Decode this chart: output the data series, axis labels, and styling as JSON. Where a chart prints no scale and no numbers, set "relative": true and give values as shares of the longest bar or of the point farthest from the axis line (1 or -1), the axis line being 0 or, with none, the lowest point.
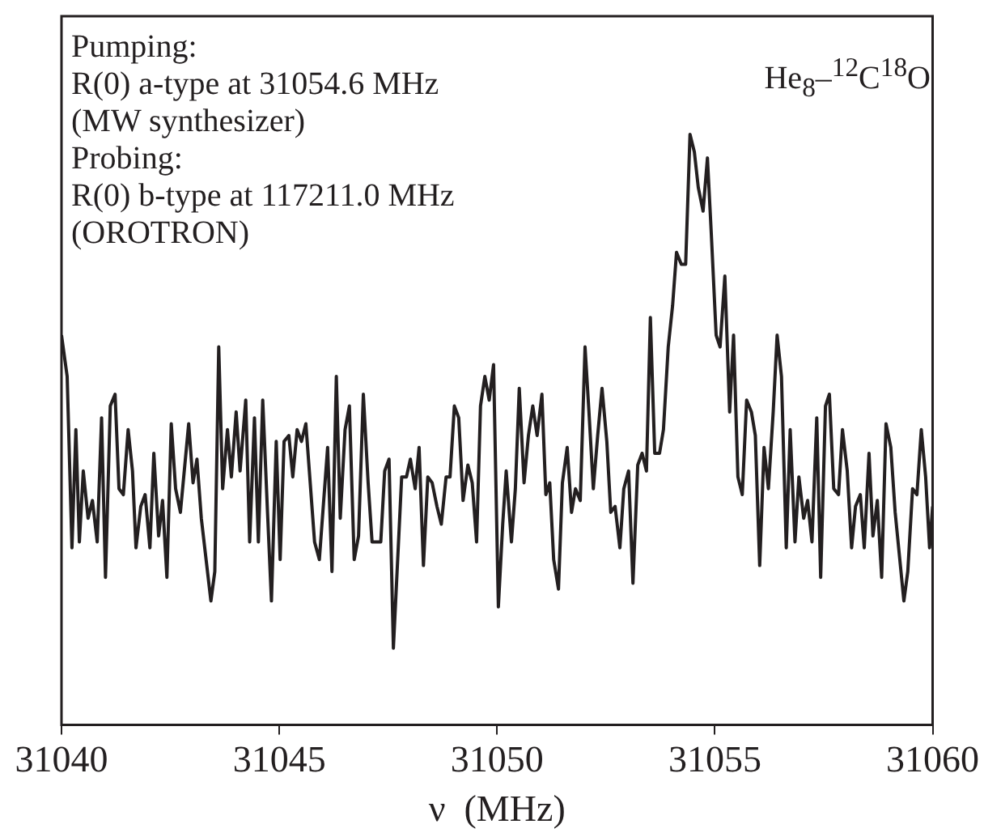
{
  "chart_data": {
    "type": "line",
    "relative": true,
    "xlabel": "ν  (MHz)",
    "xlim": [
      31040,
      31060
    ],
    "xticks": [
      31040,
      31045,
      31050,
      31055,
      31060
    ],
    "tick_labels": "x",
    "marker": "none",
    "line_style": "solid",
    "legend": false,
    "annotations": [
      "Pumping:",
      "R(0) a-type at 31054.6 MHz",
      "(MW synthesizer)",
      "Probing:",
      "R(0) b-type at 117211.0 MHz",
      "(OROTRON)",
      "He$_{8}$–$^{12}$C$^{18}$O"
    ],
    "x": [
      31040.0,
      31040.13,
      31040.24,
      31040.33,
      31040.41,
      31040.5,
      31040.61,
      31040.71,
      31040.82,
      31040.92,
      31041.01,
      31041.12,
      31041.23,
      31041.32,
      31041.42,
      31041.53,
      31041.63,
      31041.71,
      31041.82,
      31041.92,
      31042.03,
      31042.12,
      31042.23,
      31042.32,
      31042.42,
      31042.52,
      31042.62,
      31042.73,
      31042.92,
      31043.02,
      31043.11,
      31043.21,
      31043.43,
      31043.52,
      31043.61,
      31043.7,
      31043.81,
      31043.9,
      31044.01,
      31044.1,
      31044.23,
      31044.32,
      31044.43,
      31044.52,
      31044.62,
      31044.73,
      31044.82,
      31044.93,
      31045.02,
      31045.11,
      31045.22,
      31045.31,
      31045.41,
      31045.51,
      31045.61,
      31045.72,
      31045.81,
      31045.92,
      31046.11,
      31046.21,
      31046.31,
      31046.4,
      31046.51,
      31046.61,
      31046.72,
      31046.82,
      31046.93,
      31047.04,
      31047.13,
      31047.33,
      31047.42,
      31047.52,
      31047.62,
      31047.81,
      31047.92,
      31048.01,
      31048.12,
      31048.21,
      31048.31,
      31048.41,
      31048.51,
      31048.62,
      31048.72,
      31048.83,
      31048.92,
      31049.02,
      31049.12,
      31049.22,
      31049.33,
      31049.43,
      31049.53,
      31049.62,
      31049.72,
      31049.82,
      31049.92,
      31050.03,
      31050.13,
      31050.21,
      31050.33,
      31050.42,
      31050.51,
      31050.62,
      31050.72,
      31050.82,
      31050.92,
      31051.03,
      31051.12,
      31051.21,
      31051.3,
      31051.41,
      31051.5,
      31051.61,
      31051.71,
      31051.8,
      31051.91,
      31052.02,
      31052.11,
      31052.21,
      31052.31,
      31052.41,
      31052.52,
      31052.61,
      31052.71,
      31052.82,
      31052.91,
      31053.02,
      31053.12,
      31053.23,
      31053.33,
      31053.43,
      31053.52,
      31053.62,
      31053.73,
      31053.82,
      31053.93,
      31054.03,
      31054.12,
      31054.23,
      31054.33,
      31054.43,
      31054.53,
      31054.62,
      31054.73,
      31054.83,
      31054.92,
      31055.03,
      31055.12,
      31055.23,
      31055.34,
      31055.43,
      31055.53,
      31055.63,
      31055.73,
      31055.84,
      31055.93,
      31056.03,
      31056.13,
      31056.23,
      31056.34,
      31056.43,
      31056.53,
      31056.64,
      31056.73,
      31056.84,
      31056.93,
      31057.04,
      31057.13,
      31057.23,
      31057.34,
      31057.43,
      31057.54,
      31057.63,
      31057.73,
      31057.84,
      31057.93,
      31058.04,
      31058.14,
      31058.23,
      31058.34,
      31058.43,
      31058.54,
      31058.63,
      31058.73,
      31058.83,
      31058.93,
      31059.04,
      31059.14,
      31059.34,
      31059.43,
      31059.54,
      31059.64,
      31059.74,
      31059.84,
      31059.93,
      31060.0
    ],
    "series": [
      {
        "color": "#231f20",
        "values": [
          0.66,
          0.59,
          0.3,
          0.5,
          0.31,
          0.43,
          0.35,
          0.38,
          0.31,
          0.52,
          0.25,
          0.54,
          0.56,
          0.4,
          0.39,
          0.5,
          0.43,
          0.3,
          0.37,
          0.39,
          0.3,
          0.46,
          0.32,
          0.38,
          0.25,
          0.51,
          0.4,
          0.36,
          0.51,
          0.41,
          0.45,
          0.35,
          0.21,
          0.26,
          0.64,
          0.4,
          0.5,
          0.42,
          0.53,
          0.43,
          0.55,
          0.31,
          0.52,
          0.31,
          0.55,
          0.36,
          0.21,
          0.48,
          0.28,
          0.48,
          0.49,
          0.42,
          0.5,
          0.48,
          0.51,
          0.4,
          0.31,
          0.28,
          0.47,
          0.26,
          0.59,
          0.35,
          0.5,
          0.54,
          0.28,
          0.32,
          0.56,
          0.41,
          0.31,
          0.31,
          0.43,
          0.45,
          0.13,
          0.42,
          0.42,
          0.45,
          0.4,
          0.47,
          0.27,
          0.42,
          0.41,
          0.37,
          0.34,
          0.42,
          0.42,
          0.54,
          0.52,
          0.38,
          0.44,
          0.41,
          0.31,
          0.54,
          0.59,
          0.55,
          0.61,
          0.2,
          0.34,
          0.43,
          0.31,
          0.4,
          0.57,
          0.41,
          0.49,
          0.54,
          0.49,
          0.56,
          0.39,
          0.41,
          0.28,
          0.23,
          0.41,
          0.47,
          0.36,
          0.4,
          0.38,
          0.64,
          0.53,
          0.4,
          0.49,
          0.57,
          0.48,
          0.36,
          0.37,
          0.3,
          0.4,
          0.43,
          0.24,
          0.44,
          0.46,
          0.43,
          0.69,
          0.46,
          0.46,
          0.5,
          0.64,
          0.71,
          0.8,
          0.78,
          0.78,
          1,
          0.97,
          0.91,
          0.87,
          0.96,
          0.83,
          0.66,
          0.64,
          0.76,
          0.53,
          0.66,
          0.42,
          0.39,
          0.55,
          0.53,
          0.49,
          0.27,
          0.47,
          0.4,
          0.53,
          0.66,
          0.59,
          0.3,
          0.5,
          0.31,
          0.42,
          0.35,
          0.38,
          0.31,
          0.52,
          0.25,
          0.54,
          0.56,
          0.4,
          0.39,
          0.5,
          0.43,
          0.3,
          0.37,
          0.39,
          0.3,
          0.46,
          0.32,
          0.38,
          0.25,
          0.51,
          0.47,
          0.36,
          0.21,
          0.26,
          0.4,
          0.39,
          0.5,
          0.42,
          0.3,
          0.37
        ]
      }
    ]
  }
}
